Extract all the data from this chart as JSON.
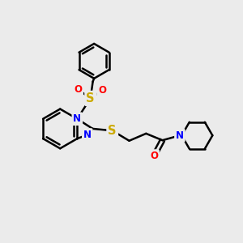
{
  "background_color": "#ebebeb",
  "bond_color": "#000000",
  "bond_width": 1.8,
  "atom_colors": {
    "N": "#0000ff",
    "S": "#ccaa00",
    "O": "#ff0000",
    "C": "#000000"
  },
  "font_size": 8.5,
  "fig_width": 3.0,
  "fig_height": 3.0,
  "dpi": 100
}
